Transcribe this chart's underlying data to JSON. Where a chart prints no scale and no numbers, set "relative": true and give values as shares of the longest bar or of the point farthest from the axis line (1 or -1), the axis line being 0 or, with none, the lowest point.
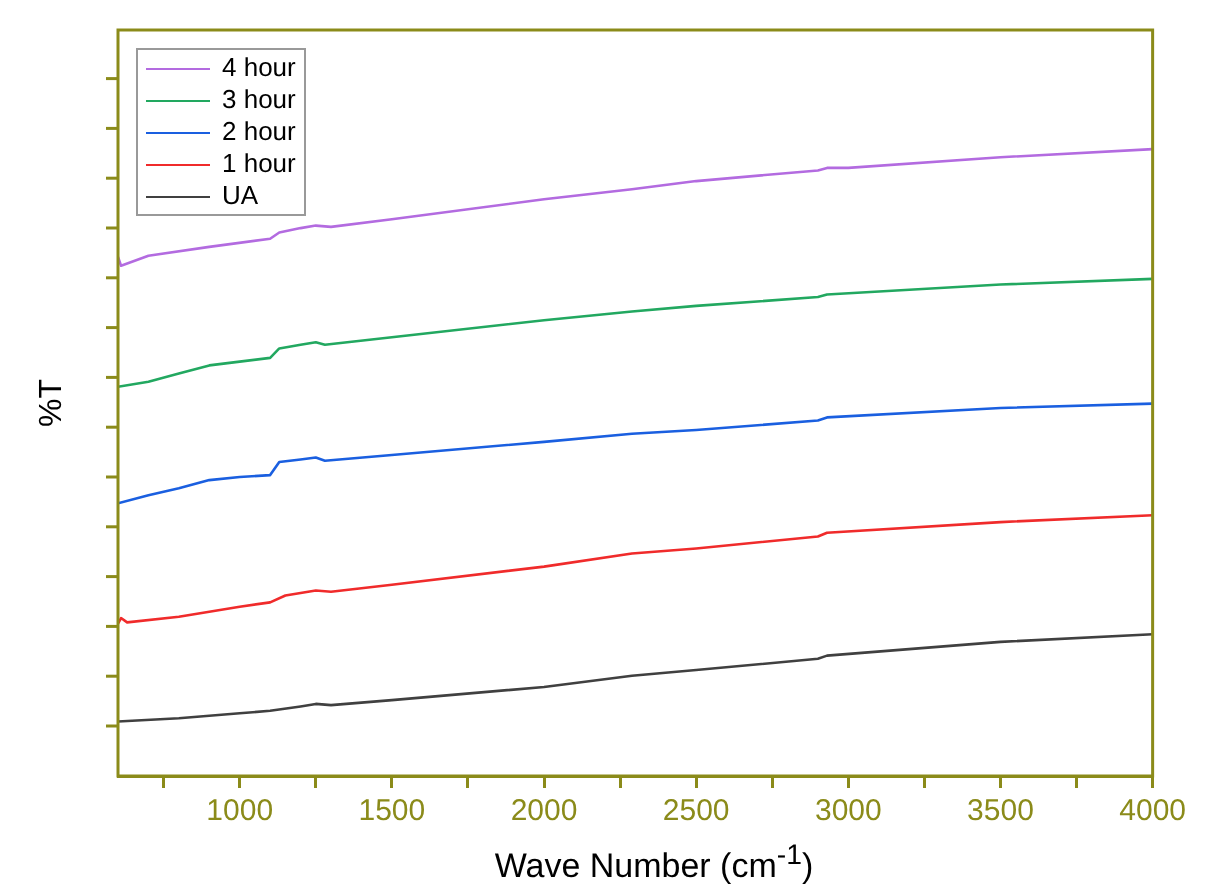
{
  "chart_data": {
    "type": "line",
    "xlabel": "Wave Number (cm$^{-1}$)",
    "ylabel": "%T",
    "relative": true,
    "xlim": [
      600,
      4000
    ],
    "xticks": [
      {
        "value": 750,
        "label": null
      },
      1000,
      {
        "value": 1250,
        "label": null
      },
      1500,
      {
        "value": 1750,
        "label": null
      },
      2000,
      {
        "value": 2250,
        "label": null
      },
      2500,
      {
        "value": 2750,
        "label": null
      },
      3000,
      {
        "value": 3250,
        "label": null
      },
      3500,
      {
        "value": 3750,
        "label": null
      },
      4000
    ],
    "legend": "top left",
    "grid": false,
    "marker": "none",
    "line_style": "solid",
    "series": [
      {
        "name": "4 hour",
        "color": "#b36be0",
        "x": [
          600,
          610,
          700,
          900,
          1100,
          1130,
          1200,
          1250,
          1300,
          1500,
          2000,
          2289,
          2500,
          2900,
          2930,
          3000,
          3500,
          4000
        ],
        "values": [
          0.828,
          0.814,
          0.83,
          0.844,
          0.857,
          0.867,
          0.874,
          0.878,
          0.876,
          0.888,
          0.92,
          0.936,
          0.949,
          0.966,
          0.97,
          0.97,
          0.987,
          1.0
        ]
      },
      {
        "name": "3 hour",
        "color": "#22a860",
        "x": [
          600,
          700,
          800,
          900,
          1000,
          1100,
          1130,
          1200,
          1250,
          1280,
          1500,
          2000,
          2289,
          2500,
          2900,
          2930,
          3500,
          4000
        ],
        "values": [
          0.621,
          0.629,
          0.642,
          0.655,
          0.661,
          0.667,
          0.682,
          0.688,
          0.692,
          0.688,
          0.7,
          0.727,
          0.741,
          0.75,
          0.764,
          0.768,
          0.784,
          0.793
        ]
      },
      {
        "name": "2 hour",
        "color": "#1a5fe0",
        "x": [
          600,
          700,
          800,
          900,
          1000,
          1100,
          1130,
          1200,
          1250,
          1280,
          1500,
          2000,
          2289,
          2500,
          2900,
          2930,
          3500,
          4000
        ],
        "values": [
          0.435,
          0.448,
          0.459,
          0.472,
          0.477,
          0.48,
          0.501,
          0.505,
          0.508,
          0.503,
          0.512,
          0.533,
          0.546,
          0.552,
          0.567,
          0.572,
          0.587,
          0.594
        ]
      },
      {
        "name": "1 hour",
        "color": "#f02b2b",
        "x": [
          600,
          610,
          630,
          800,
          1000,
          1100,
          1150,
          1250,
          1300,
          1500,
          2000,
          2289,
          2500,
          2900,
          2930,
          3500,
          4000
        ],
        "values": [
          0.243,
          0.252,
          0.245,
          0.254,
          0.27,
          0.277,
          0.288,
          0.296,
          0.294,
          0.305,
          0.334,
          0.355,
          0.363,
          0.382,
          0.388,
          0.405,
          0.416
        ]
      },
      {
        "name": "UA",
        "color": "#404040",
        "x": [
          600,
          800,
          1000,
          1100,
          1200,
          1250,
          1300,
          1500,
          2000,
          2289,
          2500,
          2900,
          2930,
          3500,
          4000
        ],
        "values": [
          0.087,
          0.092,
          0.1,
          0.104,
          0.111,
          0.115,
          0.113,
          0.121,
          0.142,
          0.16,
          0.169,
          0.187,
          0.192,
          0.214,
          0.226
        ]
      }
    ]
  }
}
